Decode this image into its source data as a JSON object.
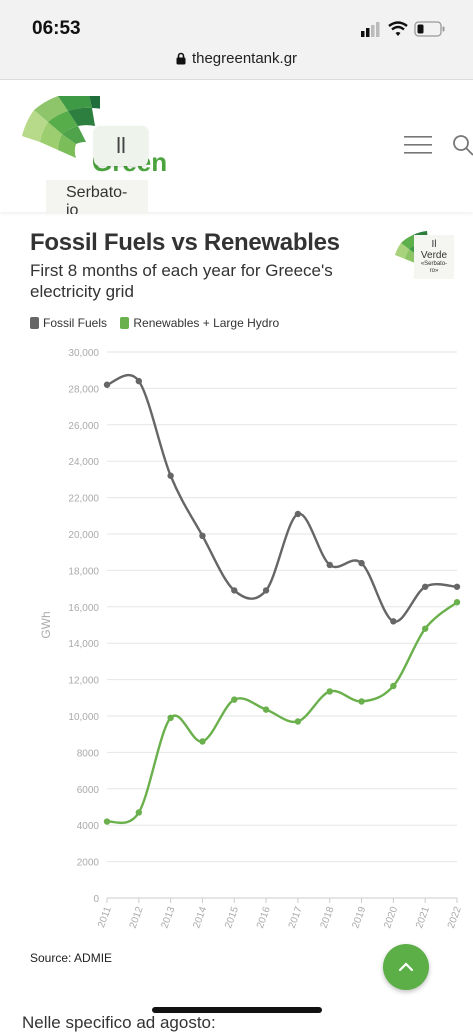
{
  "status_bar": {
    "time": "06:53"
  },
  "browser": {
    "url": "thegreentank.gr"
  },
  "header": {
    "logo_text": "Green",
    "logo_overlay": "ll",
    "logo_overlay_lower": "Serbato-\nio",
    "menu_icon": "hamburger-menu-icon",
    "search_icon": "search-icon"
  },
  "chart_logo": {
    "text": "Il\nVerde",
    "sub": "«Serbato-\nro»"
  },
  "chart_data": {
    "type": "line",
    "title": "Fossil Fuels vs Renewables",
    "subtitle": "First 8 months of each year for Greece's electricity grid",
    "ylabel": "GWh",
    "xlabel": "",
    "ylim": [
      0,
      30000
    ],
    "yticks": [
      "0",
      "2000",
      "4000",
      "6000",
      "8000",
      "10,000",
      "12,000",
      "14,000",
      "16,000",
      "18,000",
      "20,000",
      "22,000",
      "24,000",
      "26,000",
      "28,000",
      "30,000"
    ],
    "x": [
      "2011",
      "2012",
      "2013",
      "2014",
      "2015",
      "2016",
      "2017",
      "2018",
      "2019",
      "2020",
      "2021",
      "2022"
    ],
    "legend_position": "top-left",
    "grid": true,
    "series": [
      {
        "name": "Fossil Fuels",
        "color": "#666666",
        "values": [
          28200,
          28400,
          23200,
          19900,
          16900,
          16900,
          21100,
          18300,
          18400,
          15200,
          17100,
          17100
        ]
      },
      {
        "name": "Renewables + Large Hydro",
        "color": "#6ab04c",
        "values": [
          4200,
          4700,
          9900,
          8600,
          10900,
          10350,
          9700,
          11350,
          10800,
          11650,
          14800,
          16250
        ]
      }
    ]
  },
  "source": "Source: ADMIE",
  "fab": {
    "icon": "chevron-up-icon",
    "color": "#5cae47"
  },
  "bottom_text": "Nelle specifico ad agosto:"
}
